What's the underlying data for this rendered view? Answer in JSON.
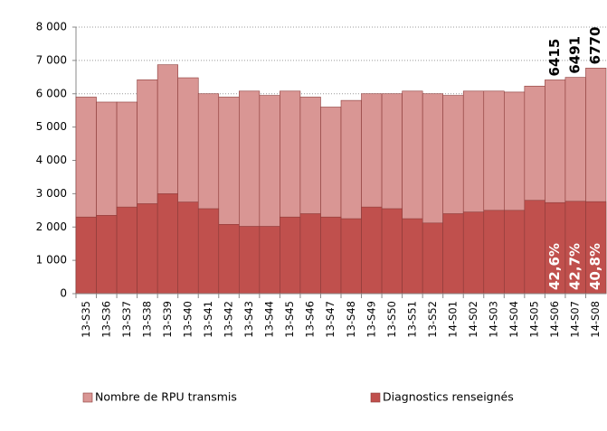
{
  "chart_data": {
    "type": "bar",
    "mode": "overlap",
    "categories": [
      "13-S35",
      "13-S36",
      "13-S37",
      "13-S38",
      "13-S39",
      "13-S40",
      "13-S41",
      "13-S42",
      "13-S43",
      "13-S44",
      "13-S45",
      "13-S46",
      "13-S47",
      "13-S48",
      "13-S49",
      "13-S50",
      "13-S51",
      "13-S52",
      "14-S01",
      "14-S02",
      "14-S03",
      "14-S04",
      "14-S05",
      "14-S06",
      "14-S07",
      "14-S08"
    ],
    "series": [
      {
        "name": "Nombre de RPU transmis",
        "color": "#d99694",
        "values": [
          5900,
          5750,
          5750,
          6420,
          6870,
          6480,
          6000,
          5900,
          6080,
          5950,
          6080,
          5900,
          5600,
          5800,
          6000,
          6000,
          6080,
          6000,
          5950,
          6080,
          6080,
          6050,
          6230,
          6415,
          6491,
          6770
        ],
        "value_labels": [
          null,
          null,
          null,
          null,
          null,
          null,
          null,
          null,
          null,
          null,
          null,
          null,
          null,
          null,
          null,
          null,
          null,
          null,
          null,
          null,
          null,
          null,
          null,
          "6415",
          "6491",
          "6770"
        ]
      },
      {
        "name": "Diagnostics renseignés",
        "color": "#c0504d",
        "values": [
          2300,
          2350,
          2600,
          2700,
          3000,
          2750,
          2550,
          2080,
          2020,
          2020,
          2300,
          2400,
          2300,
          2250,
          2600,
          2550,
          2250,
          2120,
          2400,
          2450,
          2500,
          2500,
          2800,
          2733,
          2772,
          2762
        ]
      }
    ],
    "annotations": [
      {
        "category": "14-S06",
        "text": "42,6%"
      },
      {
        "category": "14-S07",
        "text": "42,7%"
      },
      {
        "category": "14-S08",
        "text": "40,8%"
      }
    ],
    "ylim": [
      0,
      8000
    ],
    "yticks": [
      0,
      {
        "value": 1000,
        "label": "1 000"
      },
      {
        "value": 2000,
        "label": "2 000"
      },
      {
        "value": 3000,
        "label": "3 000"
      },
      {
        "value": 4000,
        "label": "4 000"
      },
      {
        "value": 5000,
        "label": "5 000"
      },
      {
        "value": 6000,
        "label": "6 000"
      },
      {
        "value": 7000,
        "label": "7 000"
      },
      {
        "value": 8000,
        "label": "8 000"
      }
    ],
    "grid": true,
    "legend": "bottom"
  }
}
